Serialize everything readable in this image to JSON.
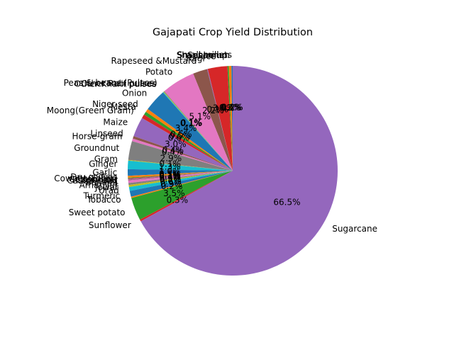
{
  "chart_data": {
    "type": "pie",
    "title": "Gajapati Crop Yield Distribution",
    "start_angle_deg": 90,
    "direction": "counterclockwise",
    "palette": [
      "#1f77b4",
      "#ff7f0e",
      "#2ca02c",
      "#d62728",
      "#9467bd",
      "#8c564b",
      "#e377c2",
      "#7f7f7f",
      "#bcbd22",
      "#17becf"
    ],
    "slices": [
      {
        "label": "Small millets",
        "pct": "0.2%",
        "value": 0.2
      },
      {
        "label": "Sesamum",
        "pct": "0.4%",
        "value": 0.4
      },
      {
        "label": "Shannhemp",
        "pct": "0.2%",
        "value": 0.2
      },
      {
        "label": "Rice",
        "pct": "3.0%",
        "value": 3.0
      },
      {
        "label": "Ragi",
        "pct": "0.1%",
        "value": 0.1
      },
      {
        "label": "Rapeseed &Mustard",
        "pct": "2.2%",
        "value": 2.2
      },
      {
        "label": "Potato",
        "pct": "5.1%",
        "value": 5.1
      },
      {
        "label": "Peas & beans (Pulses)",
        "pct": "0.1%",
        "value": 0.1
      },
      {
        "label": "Other Rabi pulses",
        "pct": "0.1%",
        "value": 0.1
      },
      {
        "label": "Other Kharif pulses",
        "pct": "0.1%",
        "value": 0.1
      },
      {
        "label": "Onion",
        "pct": "3.4%",
        "value": 3.4
      },
      {
        "label": "Niger seed",
        "pct": "0.5%",
        "value": 0.5
      },
      {
        "label": "Mesta",
        "pct": "0.5%",
        "value": 0.5
      },
      {
        "label": "Moong(Green Gram)",
        "pct": "0.6%",
        "value": 0.6
      },
      {
        "label": "Maize",
        "pct": "3.0%",
        "value": 3.0
      },
      {
        "label": "Linseed",
        "pct": "0.4%",
        "value": 0.4
      },
      {
        "label": "Horse-gram",
        "pct": "0.4%",
        "value": 0.4
      },
      {
        "label": "Groundnut",
        "pct": "2.9%",
        "value": 2.9
      },
      {
        "label": "Gram",
        "pct": "0.1%",
        "value": 0.1
      },
      {
        "label": "Ginger",
        "pct": "1.3%",
        "value": 1.3
      },
      {
        "label": "Garlic",
        "pct": "1.0%",
        "value": 1.0
      },
      {
        "label": "Dry chillies",
        "pct": "0.3%",
        "value": 0.3
      },
      {
        "label": "Cowpea(Lobia)",
        "pct": "0.1%",
        "value": 0.1
      },
      {
        "label": "Cotton(lint)",
        "pct": "0.1%",
        "value": 0.1
      },
      {
        "label": "Coriander",
        "pct": "0.1%",
        "value": 0.1
      },
      {
        "label": "Castor seed",
        "pct": "0.1%",
        "value": 0.1
      },
      {
        "label": "Banana",
        "pct": "0.4%",
        "value": 0.4
      },
      {
        "label": "Arhar/Tur",
        "pct": "0.3%",
        "value": 0.3
      },
      {
        "label": "Jowar",
        "pct": "0.3%",
        "value": 0.3
      },
      {
        "label": "Urad",
        "pct": "0.6%",
        "value": 0.6
      },
      {
        "label": "Turmeric",
        "pct": "0.9%",
        "value": 0.9
      },
      {
        "label": "Tobacco",
        "pct": "0.2%",
        "value": 0.2
      },
      {
        "label": "Sweet potato",
        "pct": "3.5%",
        "value": 3.5
      },
      {
        "label": "Sunflower",
        "pct": "0.3%",
        "value": 0.3
      },
      {
        "label": "Sugarcane",
        "pct": "66.5%",
        "value": 66.5
      }
    ]
  }
}
